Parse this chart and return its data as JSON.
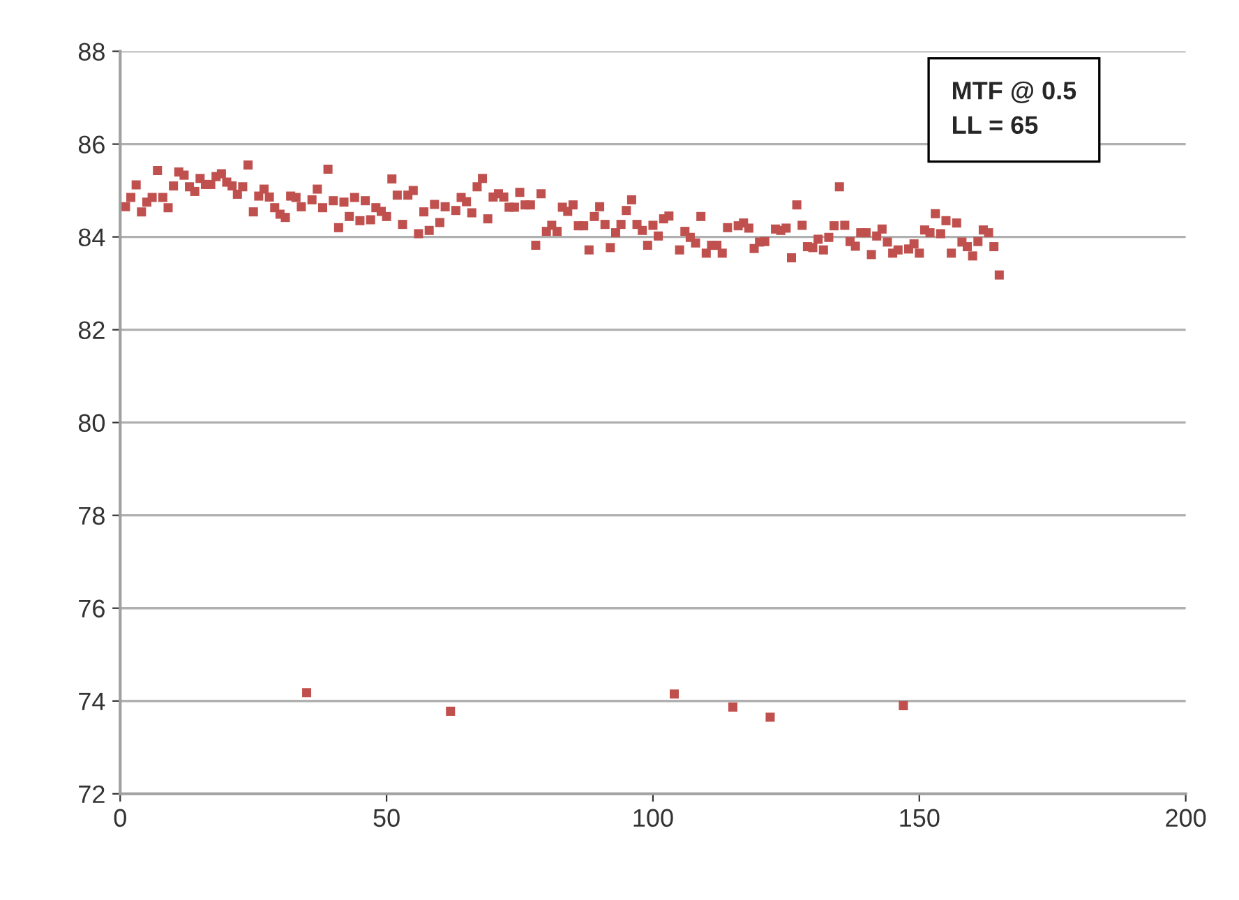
{
  "chart_data": {
    "type": "scatter",
    "x": [
      1,
      2,
      3,
      4,
      5,
      6,
      7,
      8,
      9,
      10,
      11,
      12,
      13,
      14,
      15,
      16,
      17,
      18,
      19,
      20,
      21,
      22,
      23,
      24,
      25,
      26,
      27,
      28,
      29,
      30,
      31,
      32,
      33,
      34,
      35,
      36,
      37,
      38,
      39,
      40,
      41,
      42,
      43,
      44,
      45,
      46,
      47,
      48,
      49,
      50,
      51,
      52,
      53,
      54,
      55,
      56,
      57,
      58,
      59,
      60,
      61,
      62,
      63,
      64,
      65,
      66,
      67,
      68,
      69,
      70,
      71,
      72,
      73,
      74,
      75,
      76,
      77,
      78,
      79,
      80,
      81,
      82,
      83,
      84,
      85,
      86,
      87,
      88,
      89,
      90,
      91,
      92,
      93,
      94,
      95,
      96,
      97,
      98,
      99,
      100,
      101,
      102,
      103,
      104,
      105,
      106,
      107,
      108,
      109,
      110,
      111,
      112,
      113,
      114,
      115,
      116,
      117,
      118,
      119,
      120,
      121,
      122,
      123,
      124,
      125,
      126,
      127,
      128,
      129,
      130,
      131,
      132,
      133,
      134,
      135,
      136,
      137,
      138,
      139,
      140,
      141,
      142,
      143,
      144,
      145,
      146,
      147,
      148,
      149,
      150,
      151,
      152,
      153,
      154,
      155,
      156,
      157,
      158,
      159,
      160,
      161,
      162,
      163,
      164,
      165
    ],
    "series": [
      {
        "color": "#c0504d",
        "values": [
          84.65,
          84.85,
          85.12,
          84.54,
          84.75,
          84.85,
          85.43,
          84.85,
          84.63,
          85.1,
          85.4,
          85.33,
          85.08,
          84.98,
          85.26,
          85.13,
          85.13,
          85.3,
          85.36,
          85.18,
          85.1,
          84.92,
          85.08,
          85.55,
          84.54,
          84.88,
          85.03,
          84.86,
          84.63,
          84.49,
          84.42,
          84.88,
          84.85,
          84.65,
          74.18,
          84.8,
          85.03,
          84.63,
          85.46,
          84.78,
          84.2,
          84.75,
          84.44,
          84.85,
          84.35,
          84.78,
          84.37,
          84.63,
          84.55,
          84.44,
          85.25,
          84.9,
          84.27,
          84.9,
          85.0,
          84.07,
          84.54,
          84.14,
          84.7,
          84.31,
          84.65,
          73.78,
          84.57,
          84.85,
          84.76,
          84.52,
          85.08,
          85.26,
          84.39,
          84.86,
          84.93,
          84.86,
          84.64,
          84.64,
          84.96,
          84.69,
          84.69,
          83.82,
          84.93,
          84.12,
          84.25,
          84.12,
          84.64,
          84.55,
          84.69,
          84.24,
          84.24,
          83.72,
          84.44,
          84.65,
          84.27,
          83.77,
          84.09,
          84.27,
          84.57,
          84.8,
          84.27,
          84.14,
          83.82,
          84.25,
          84.02,
          84.39,
          84.45,
          74.15,
          83.72,
          84.12,
          83.99,
          83.87,
          84.44,
          83.65,
          83.82,
          83.82,
          83.65,
          84.2,
          73.87,
          84.24,
          84.3,
          84.19,
          83.75,
          83.89,
          83.9,
          73.65,
          84.17,
          84.14,
          84.19,
          83.55,
          84.69,
          84.25,
          83.79,
          83.77,
          83.95,
          83.72,
          83.99,
          84.24,
          85.08,
          84.25,
          83.9,
          83.8,
          84.09,
          84.09,
          83.62,
          84.02,
          84.17,
          83.89,
          83.65,
          83.72,
          73.9,
          83.74,
          83.85,
          83.65,
          84.15,
          84.09,
          84.5,
          84.07,
          84.35,
          83.65,
          84.3,
          83.89,
          83.79,
          83.59,
          83.9,
          84.15,
          84.09,
          83.79,
          83.18
        ]
      }
    ],
    "marker": "square",
    "xlim": [
      0,
      200
    ],
    "xticks": [
      0,
      50,
      100,
      150,
      200
    ],
    "ylim": [
      72,
      88
    ],
    "yticks": [
      72,
      74,
      76,
      78,
      80,
      82,
      84,
      86,
      88
    ],
    "grid": "y",
    "annotations": [
      "MTF @ 0.5\nLL = 65"
    ]
  }
}
